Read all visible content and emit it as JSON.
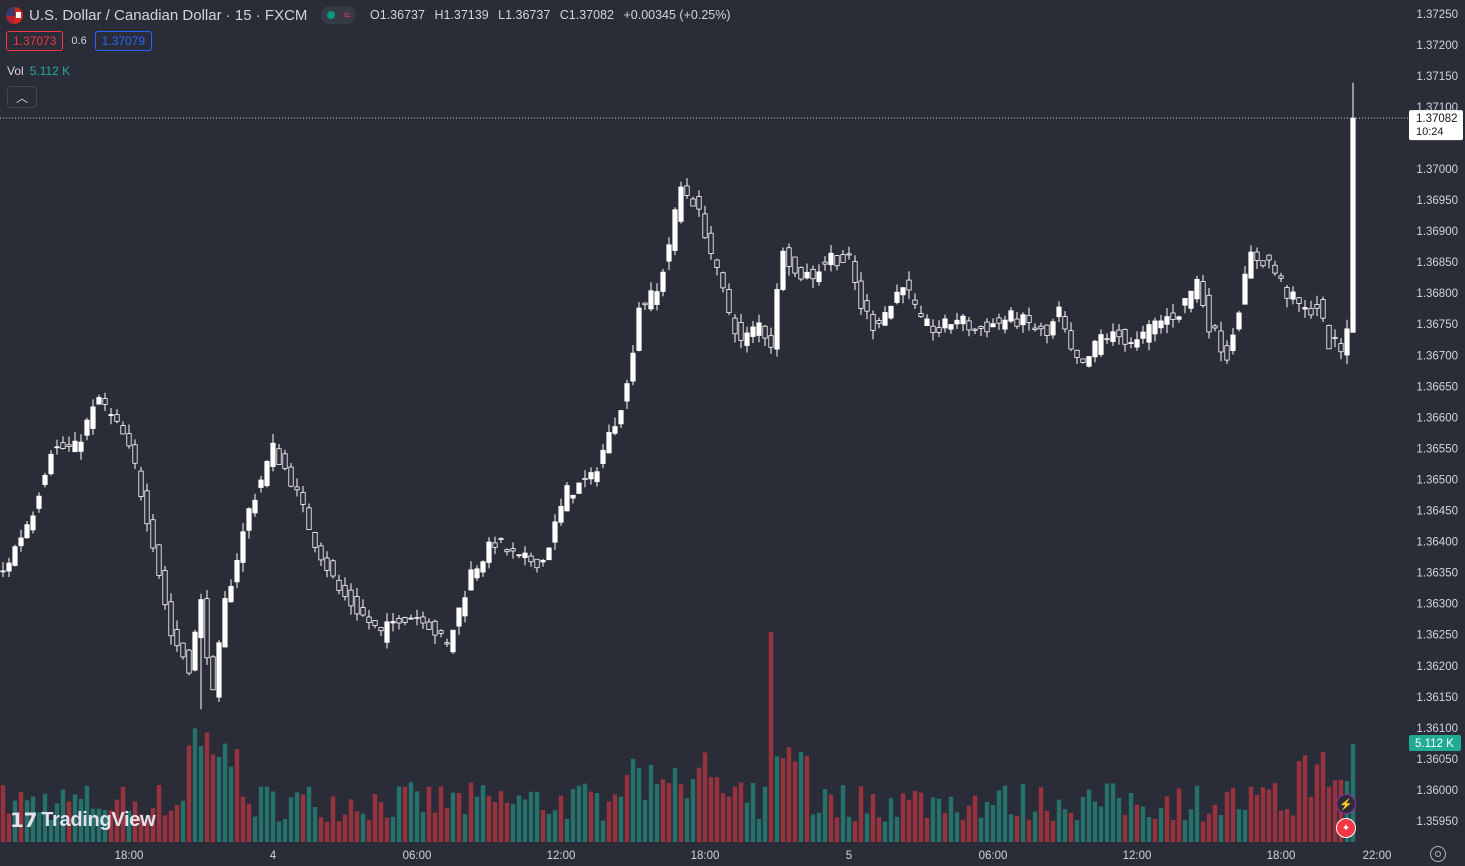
{
  "legend": {
    "title": "U.S. Dollar / Canadian Dollar · 15 · FXCM",
    "open": "O1.36737",
    "high": "H1.37139",
    "low": "L1.36737",
    "close": "C1.37082",
    "change": "+0.00345 (+0.25%)",
    "bid": "1.37073",
    "spread": "0.6",
    "ask": "1.37079"
  },
  "volume_legend": {
    "label": "Vol",
    "value": "5.112 K"
  },
  "logo": {
    "text": "TradingView"
  },
  "colors": {
    "background": "#2a2d38",
    "up": "#ffffff",
    "down": "#ffffff",
    "vol_up": "#22ab94",
    "vol_down": "#f23645",
    "grid": "#2f3240"
  },
  "icons": [
    "usd-cad-flag-icon",
    "market-open-dot-icon",
    "wave-icon",
    "collapse-chevron-icon",
    "lightning-icon",
    "canada-flag-icon",
    "settings-icon"
  ],
  "chart_data": {
    "type": "candlestick",
    "symbol": "USDCAD",
    "interval": "15",
    "price_axis": {
      "ticks": [
        "1.37250",
        "1.37200",
        "1.37150",
        "1.37100",
        "1.37000",
        "1.36950",
        "1.36900",
        "1.36850",
        "1.36800",
        "1.36750",
        "1.36700",
        "1.36650",
        "1.36600",
        "1.36550",
        "1.36500",
        "1.36450",
        "1.36400",
        "1.36350",
        "1.36300",
        "1.36250",
        "1.36200",
        "1.36150",
        "1.36100",
        "1.36050",
        "1.36000",
        "1.35950"
      ],
      "range": [
        1.35945,
        1.37265
      ]
    },
    "time_axis": {
      "ticks": [
        {
          "label": "18:00",
          "bar": 21
        },
        {
          "label": "4",
          "bar": 45
        },
        {
          "label": "06:00",
          "bar": 69
        },
        {
          "label": "12:00",
          "bar": 93
        },
        {
          "label": "18:00",
          "bar": 117
        },
        {
          "label": "5",
          "bar": 141
        },
        {
          "label": "06:00",
          "bar": 165
        },
        {
          "label": "12:00",
          "bar": 189
        },
        {
          "label": "18:00",
          "bar": 213
        },
        {
          "label": "22:00",
          "bar": 229
        }
      ]
    },
    "last_price": "1.37082",
    "countdown": "10:24",
    "last_volume": "5.112 K",
    "price_keypoints": [
      [
        0,
        1.3635
      ],
      [
        5,
        1.3645
      ],
      [
        8,
        1.3655
      ],
      [
        12,
        1.3655
      ],
      [
        16,
        1.3663
      ],
      [
        20,
        1.3657
      ],
      [
        22,
        1.3652
      ],
      [
        25,
        1.364
      ],
      [
        28,
        1.3625
      ],
      [
        31,
        1.362
      ],
      [
        33,
        1.363
      ],
      [
        35,
        1.3615
      ],
      [
        37,
        1.363
      ],
      [
        41,
        1.3645
      ],
      [
        45,
        1.3655
      ],
      [
        48,
        1.365
      ],
      [
        52,
        1.364
      ],
      [
        56,
        1.3632
      ],
      [
        60,
        1.3628
      ],
      [
        63,
        1.3625
      ],
      [
        66,
        1.3628
      ],
      [
        70,
        1.3628
      ],
      [
        74,
        1.3623
      ],
      [
        78,
        1.3635
      ],
      [
        82,
        1.364
      ],
      [
        86,
        1.3637
      ],
      [
        90,
        1.3637
      ],
      [
        94,
        1.3648
      ],
      [
        98,
        1.365
      ],
      [
        101,
        1.3657
      ],
      [
        104,
        1.3665
      ],
      [
        106,
        1.3678
      ],
      [
        109,
        1.368
      ],
      [
        111,
        1.3688
      ],
      [
        113,
        1.3697
      ],
      [
        115,
        1.3695
      ],
      [
        117,
        1.369
      ],
      [
        119,
        1.3683
      ],
      [
        121,
        1.3677
      ],
      [
        123,
        1.3672
      ],
      [
        126,
        1.3675
      ],
      [
        128,
        1.3672
      ],
      [
        130,
        1.3688
      ],
      [
        132,
        1.3683
      ],
      [
        135,
        1.3683
      ],
      [
        138,
        1.3686
      ],
      [
        141,
        1.3685
      ],
      [
        143,
        1.3678
      ],
      [
        145,
        1.3675
      ],
      [
        148,
        1.3678
      ],
      [
        150,
        1.3682
      ],
      [
        153,
        1.3675
      ],
      [
        156,
        1.3674
      ],
      [
        159,
        1.3676
      ],
      [
        162,
        1.3674
      ],
      [
        165,
        1.3675
      ],
      [
        168,
        1.3676
      ],
      [
        171,
        1.3675
      ],
      [
        174,
        1.3673
      ],
      [
        176,
        1.3677
      ],
      [
        178,
        1.367
      ],
      [
        180,
        1.3668
      ],
      [
        183,
        1.3673
      ],
      [
        186,
        1.3673
      ],
      [
        189,
        1.3672
      ],
      [
        192,
        1.3675
      ],
      [
        196,
        1.3677
      ],
      [
        199,
        1.3682
      ],
      [
        201,
        1.3675
      ],
      [
        204,
        1.367
      ],
      [
        206,
        1.3678
      ],
      [
        208,
        1.3686
      ],
      [
        211,
        1.3685
      ],
      [
        214,
        1.368
      ],
      [
        217,
        1.3677
      ],
      [
        219,
        1.3678
      ],
      [
        221,
        1.3672
      ],
      [
        223,
        1.3671
      ],
      [
        224,
        1.3675
      ],
      [
        225,
        1.37082
      ]
    ]
  }
}
